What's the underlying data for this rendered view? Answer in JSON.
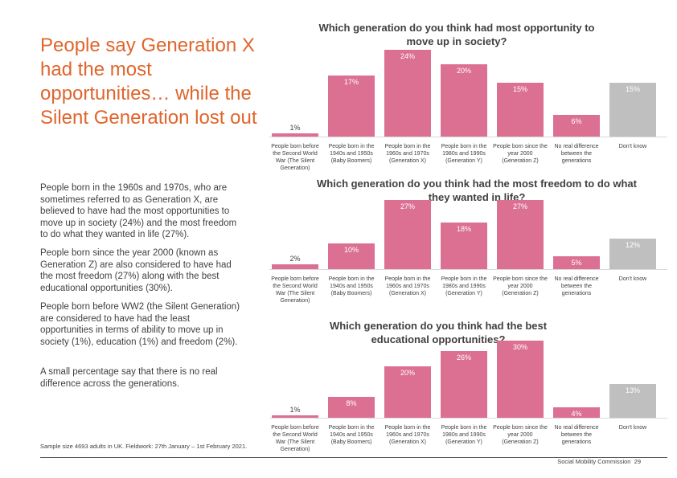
{
  "heading": "People say Generation X had the most opportunities… while the Silent Generation lost out",
  "paragraphs": [
    "People born in the 1960s and 1970s, who are sometimes referred to as Generation X, are believed to have had the most opportunities to move up in society (24%) and the most freedom to do what they wanted in life (27%).",
    "People born since the year 2000 (known as Generation Z) are also considered to have had the most freedom (27%) along with the best educational opportunities (30%).",
    "People born before WW2 (the Silent Generation) are considered to have had the least opportunities in terms of ability to move up in society (1%), education (1%) and freedom (2%).",
    "A small percentage say that there is no real difference across the generations."
  ],
  "sample_note": "Sample size 4693 adults in UK. Fieldwork: 27th January – 1st February 2021.",
  "footer": {
    "organisation": "Social Mobility Commission",
    "page": "29"
  },
  "colors": {
    "bar": "#DB7093",
    "dont_know_bar": "#BFBFBF",
    "heading": "#E0652C",
    "text": "#404040"
  },
  "chart_data": [
    {
      "type": "bar",
      "title": "Which generation do you think had most opportunity to move up in society?",
      "categories": [
        "People born before the Second World War (The Silent Generation)",
        "People born in the 1940s and 1950s (Baby Boomers)",
        "People born in the 1960s and 1970s (Generation X)",
        "People born in the 1980s and 1990s (Generation Y)",
        "People born since the year 2000 (Generation Z)",
        "No real difference between the generations",
        "Don't know"
      ],
      "values": [
        1,
        17,
        24,
        20,
        15,
        6,
        15
      ],
      "value_labels": [
        "1%",
        "17%",
        "24%",
        "20%",
        "15%",
        "6%",
        "15%"
      ],
      "unit": "%"
    },
    {
      "type": "bar",
      "title": "Which generation do you think had the most freedom to do what they wanted in life?",
      "categories": [
        "People born before the Second World War (The Silent Generation)",
        "People born in the 1940s and 1950s (Baby Boomers)",
        "People born in the 1960s and 1970s (Generation X)",
        "People born in the 1980s and 1990s (Generation Y)",
        "People born since the year 2000 (Generation Z)",
        "No real difference between the generations",
        "Don't know"
      ],
      "values": [
        2,
        10,
        27,
        18,
        27,
        5,
        12
      ],
      "value_labels": [
        "2%",
        "10%",
        "27%",
        "18%",
        "27%",
        "5%",
        "12%"
      ],
      "unit": "%"
    },
    {
      "type": "bar",
      "title": "Which generation do you think had the best educational opportunities?",
      "categories": [
        "People born before the Second World War (The Silent Generation)",
        "People born in the 1940s and 1950s (Baby Boomers)",
        "People born in the 1960s and 1970s (Generation X)",
        "People born in the 1980s and 1990s (Generation Y)",
        "People born since the year 2000 (Generation Z)",
        "No real difference between the generations",
        "Don't know"
      ],
      "values": [
        1,
        8,
        20,
        26,
        30,
        4,
        13
      ],
      "value_labels": [
        "1%",
        "8%",
        "20%",
        "26%",
        "30%",
        "4%",
        "13%"
      ],
      "unit": "%"
    }
  ]
}
